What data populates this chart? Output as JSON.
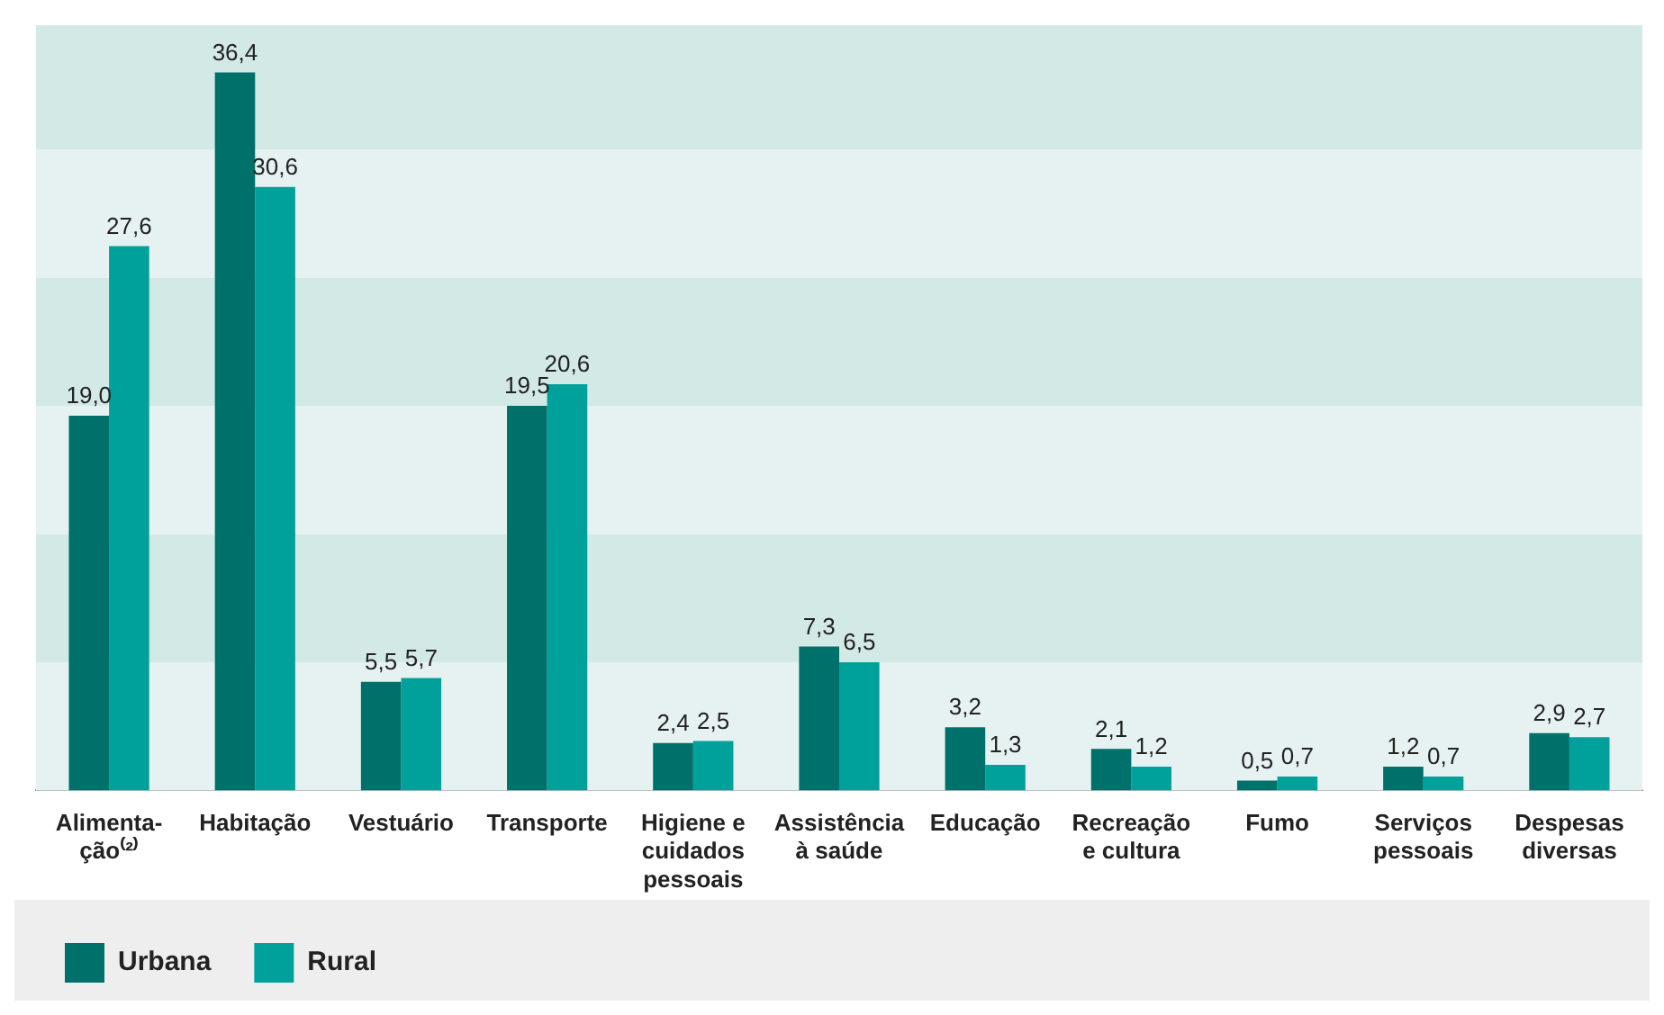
{
  "chart_data": {
    "type": "bar",
    "relative": false,
    "categories": [
      "Alimenta-ção⁽²⁾",
      "Habitação",
      "Vestuário",
      "Transporte",
      "Higiene e cuidados pessoais",
      "Assistência à saúde",
      "Educação",
      "Recreação e cultura",
      "Fumo",
      "Serviços pessoais",
      "Despesas diversas"
    ],
    "series": [
      {
        "name": "Urbana",
        "color": "#00706b",
        "values": [
          19.0,
          36.4,
          5.5,
          19.5,
          2.4,
          7.3,
          3.2,
          2.1,
          0.5,
          1.2,
          2.9
        ],
        "value_labels": [
          "19,0",
          "36,4",
          "5,5",
          "19,5",
          "2,4",
          "7,3",
          "3,2",
          "2,1",
          "0,5",
          "1,2",
          "2,9"
        ]
      },
      {
        "name": "Rural",
        "color": "#00a19a",
        "values": [
          27.6,
          30.6,
          5.7,
          20.6,
          2.5,
          6.5,
          1.3,
          1.2,
          0.7,
          0.7,
          2.7
        ],
        "value_labels": [
          "27,6",
          "30,6",
          "5,7",
          "20,6",
          "2,5",
          "6,5",
          "1,3",
          "1,2",
          "0,7",
          "0,7",
          "2,7"
        ]
      }
    ],
    "ylim": [
      0,
      38.8
    ],
    "bands": [
      {
        "axis": "y",
        "from": 0,
        "to": 6.5,
        "color": "#e6f2f1"
      },
      {
        "axis": "y",
        "from": 6.5,
        "to": 13,
        "color": "#d2e9e6"
      },
      {
        "axis": "y",
        "from": 13,
        "to": 19.5,
        "color": "#e6f2f1"
      },
      {
        "axis": "y",
        "from": 19.5,
        "to": 26,
        "color": "#d2e9e6"
      },
      {
        "axis": "y",
        "from": 26,
        "to": 32.5,
        "color": "#e6f2f1"
      },
      {
        "axis": "y",
        "from": 32.5,
        "to": 38.8,
        "color": "#d2e9e6"
      }
    ],
    "legend": "bottom left"
  }
}
